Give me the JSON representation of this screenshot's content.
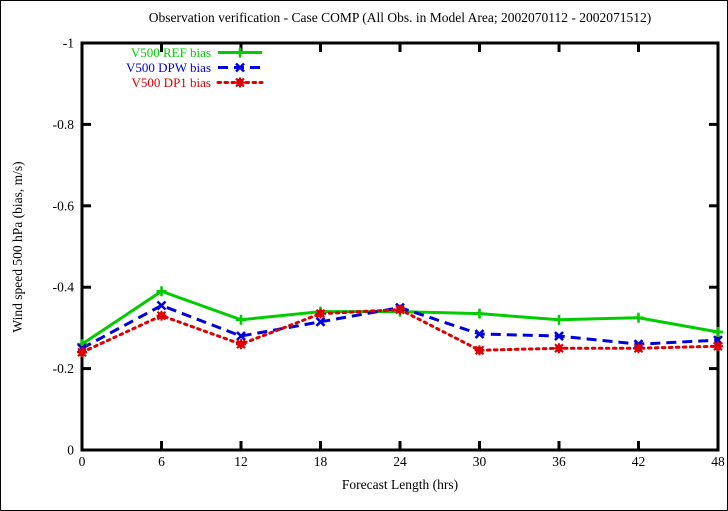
{
  "title": "Observation verification - Case COMP (All Obs. in Model Area; 2002070112 - 2002071512)",
  "chart_data": {
    "type": "line",
    "title": "Observation verification - Case COMP (All Obs. in Model Area; 2002070112 - 2002071512)",
    "xlabel": "Forecast Length (hrs)",
    "ylabel": "Wind speed 500 hPa (bias, m/s)",
    "x": [
      0,
      6,
      12,
      18,
      24,
      30,
      36,
      42,
      48
    ],
    "xticks": [
      0,
      6,
      12,
      18,
      24,
      30,
      36,
      42,
      48
    ],
    "xtick_labels": [
      "0",
      "6",
      "12",
      "18",
      "24",
      "30",
      "36",
      "42",
      "48"
    ],
    "xlim": [
      0,
      48
    ],
    "yticks": [
      -1,
      -0.8,
      -0.6,
      -0.4,
      -0.2,
      0
    ],
    "ytick_labels": [
      "-1",
      "-0.8",
      "-0.6",
      "-0.4",
      "-0.2",
      "0"
    ],
    "ylim_top": -1,
    "ylim_bottom": 0,
    "grid": false,
    "legend_position": "inside-top-left",
    "axis_color": "#000000",
    "background_color": "#ffffff",
    "series": [
      {
        "name": "V500 REF bias",
        "color": "#00cc00",
        "line_style": "solid",
        "marker": "plus",
        "values": [
          -0.26,
          -0.39,
          -0.32,
          -0.34,
          -0.34,
          -0.335,
          -0.32,
          -0.325,
          -0.29
        ]
      },
      {
        "name": "V500 DPW bias",
        "color": "#0000dd",
        "line_style": "dashed",
        "marker": "x",
        "values": [
          -0.25,
          -0.355,
          -0.28,
          -0.315,
          -0.35,
          -0.285,
          -0.28,
          -0.26,
          -0.27
        ]
      },
      {
        "name": "V500 DP1 bias",
        "color": "#dd0000",
        "line_style": "dotted",
        "marker": "filled-square-asterisk",
        "values": [
          -0.24,
          -0.33,
          -0.26,
          -0.335,
          -0.345,
          -0.245,
          -0.25,
          -0.25,
          -0.255
        ]
      }
    ]
  }
}
